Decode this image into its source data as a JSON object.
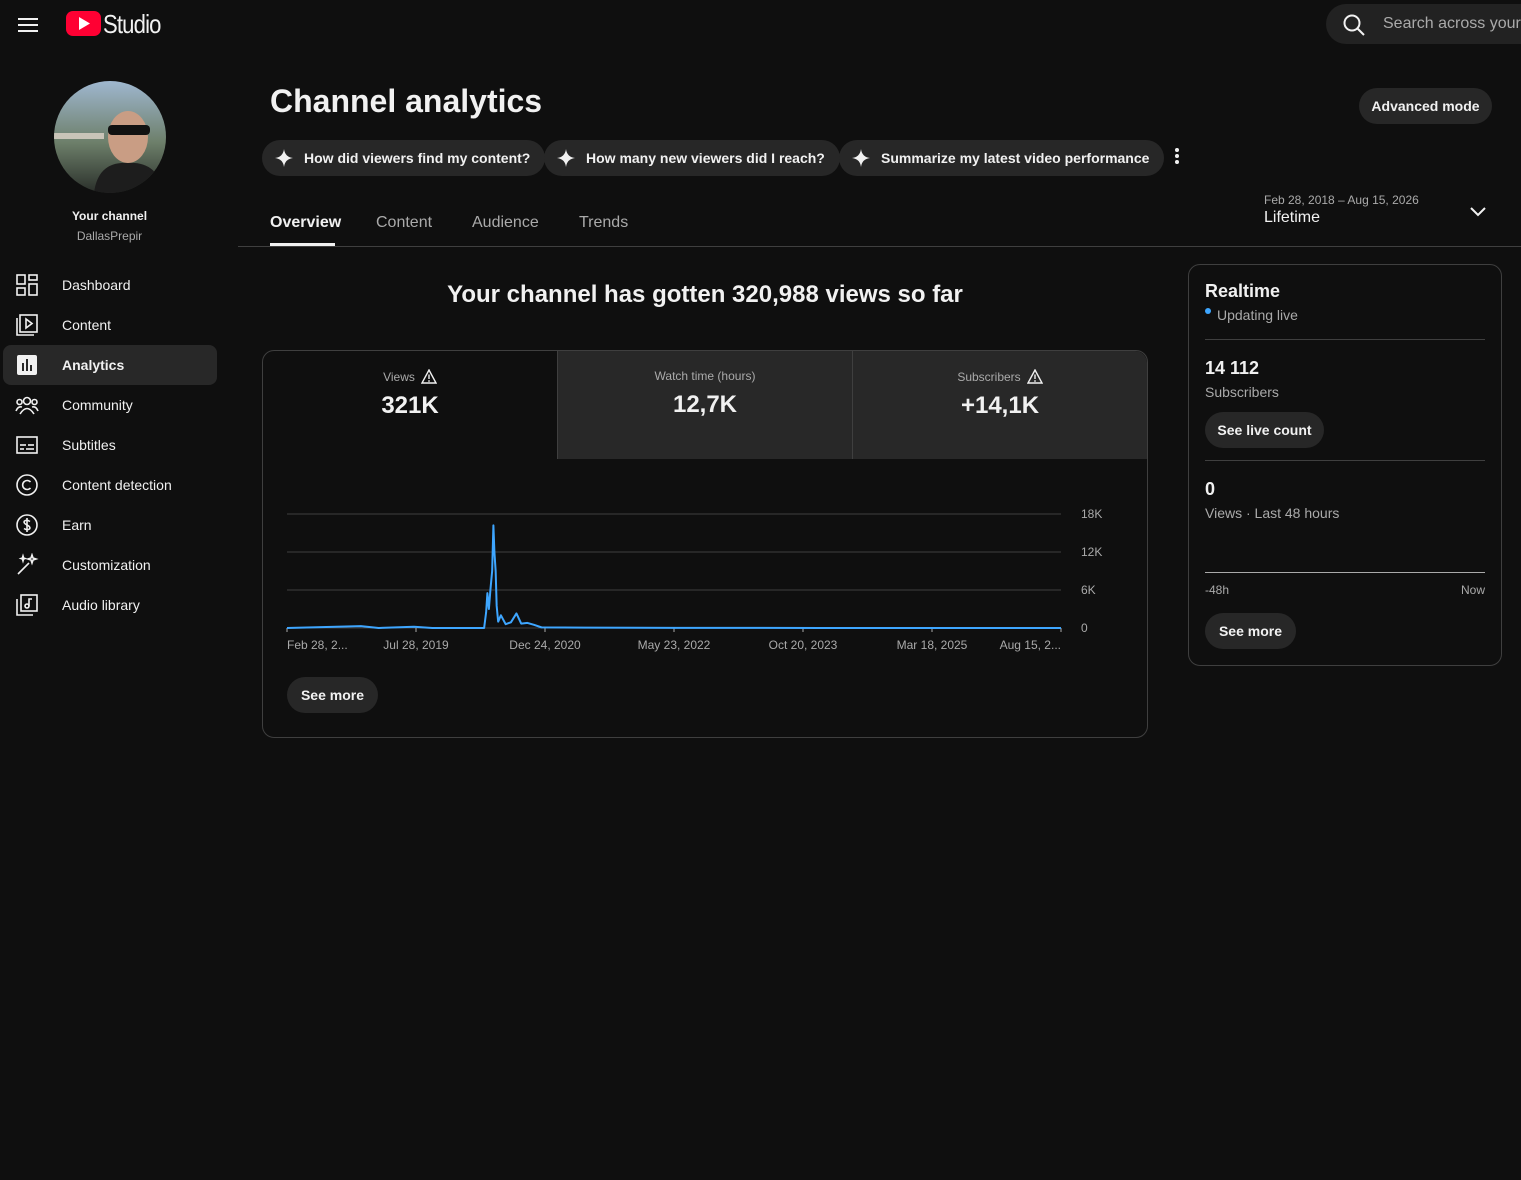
{
  "header": {
    "logo_text": "Studio",
    "search_placeholder": "Search across your"
  },
  "sidebar": {
    "channel_label": "Your channel",
    "channel_name": "DallasPrepir",
    "nav": [
      "Dashboard",
      "Content",
      "Analytics",
      "Community",
      "Subtitles",
      "Content detection",
      "Earn",
      "Customization",
      "Audio library"
    ]
  },
  "main": {
    "title": "Channel analytics",
    "advanced_button": "Advanced mode",
    "prompts": [
      "How did viewers find my content?",
      "How many new viewers did I reach?",
      "Summarize my latest video performance"
    ],
    "tabs": [
      "Overview",
      "Content",
      "Audience",
      "Trends"
    ],
    "date_range": "Feb 28, 2018 – Aug 15, 2026",
    "period": "Lifetime",
    "headline": "Your channel has gotten 320,988 views so far",
    "metrics": [
      {
        "label": "Views",
        "value": "321K"
      },
      {
        "label": "Watch time (hours)",
        "value": "12,7K"
      },
      {
        "label": "Subscribers",
        "value": "+14,1K"
      }
    ],
    "see_more": "See more"
  },
  "chart_data": {
    "type": "line",
    "color": "#3ea6ff",
    "grid": true,
    "x": [
      "2018-02-28",
      "2018-12-20",
      "2019-03-01",
      "2019-07-20",
      "2019-10-01",
      "2020-04-25",
      "2020-05-03",
      "2020-05-08",
      "2020-05-14",
      "2020-05-20",
      "2020-05-27",
      "2020-06-01",
      "2020-06-05",
      "2020-06-10",
      "2020-06-14",
      "2020-06-20",
      "2020-07-01",
      "2020-07-20",
      "2020-08-10",
      "2020-09-01",
      "2020-09-20",
      "2020-10-15",
      "2020-11-10",
      "2020-12-10",
      "2021-06-01",
      "2022-06-01",
      "2024-01-01",
      "2026-08-15"
    ],
    "values": [
      0,
      300,
      0,
      200,
      0,
      0,
      2500,
      5500,
      3000,
      6000,
      9000,
      16200,
      12000,
      9000,
      3500,
      1000,
      2000,
      600,
      900,
      2300,
      700,
      800,
      500,
      100,
      50,
      20,
      10,
      0
    ],
    "xlim": [
      "2018-02-28",
      "2026-08-15"
    ],
    "xticks": [
      {
        "value": "2018-02-28",
        "label": "Feb 28, 2..."
      },
      {
        "value": "2019-07-28",
        "label": "Jul 28, 2019"
      },
      {
        "value": "2020-12-24",
        "label": "Dec 24, 2020"
      },
      {
        "value": "2022-05-23",
        "label": "May 23, 2022"
      },
      {
        "value": "2023-10-20",
        "label": "Oct 20, 2023"
      },
      {
        "value": "2025-03-18",
        "label": "Mar 18, 2025"
      },
      {
        "value": "2026-08-15",
        "label": "Aug 15, 2..."
      }
    ],
    "ylim": [
      0,
      18000
    ],
    "yticks": [
      0,
      {
        "value": 6000,
        "label": "6K"
      },
      {
        "value": 12000,
        "label": "12K"
      },
      {
        "value": 18000,
        "label": "18K"
      }
    ]
  },
  "realtime": {
    "title": "Realtime",
    "status": "Updating live",
    "subscribers_value": "14 112",
    "subscribers_label": "Subscribers",
    "live_count_button": "See live count",
    "views_value": "0",
    "views_label": "Views · Last 48 hours",
    "axis_start": "-48h",
    "axis_end": "Now",
    "see_more": "See more"
  }
}
